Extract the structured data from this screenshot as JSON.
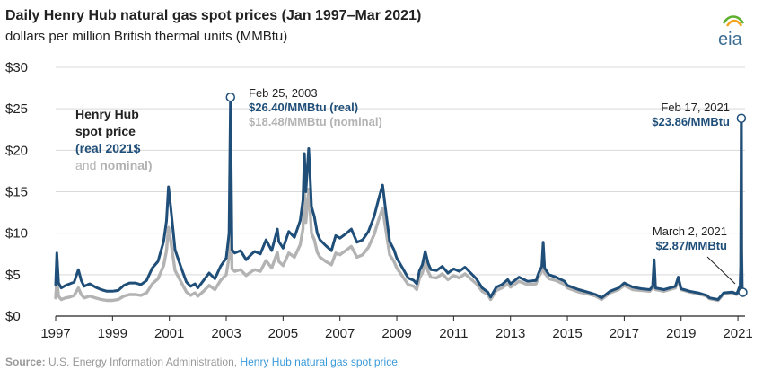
{
  "chart_data": {
    "type": "line",
    "title": "Daily Henry Hub natural gas spot prices (Jan 1997–Mar 2021)",
    "subtitle": "dollars per million British thermal units (MMBtu)",
    "xlim": [
      1997,
      2021.25
    ],
    "ylim": [
      0,
      30
    ],
    "grid": true,
    "y_ticks": [
      0,
      5,
      10,
      15,
      20,
      25,
      30
    ],
    "y_tick_labels": [
      "$0",
      "$5",
      "$10",
      "$15",
      "$20",
      "$25",
      "$30"
    ],
    "x_ticks": [
      1997,
      1999,
      2001,
      2003,
      2005,
      2007,
      2009,
      2011,
      2013,
      2015,
      2017,
      2019,
      2021
    ],
    "x_tick_labels": [
      "1997",
      "1999",
      "2001",
      "2003",
      "2005",
      "2007",
      "2009",
      "2011",
      "2013",
      "2015",
      "2017",
      "2019",
      "2021"
    ],
    "legend": {
      "title_lines": [
        "Henry Hub",
        "spot price"
      ],
      "real_label": "(real 2021$",
      "nominal_prefix": "and ",
      "nominal_label": "nominal)"
    },
    "series": [
      {
        "name": "real 2021$",
        "color": "#1f4e79",
        "x": [
          1997.0,
          1997.04,
          1997.1,
          1997.2,
          1997.35,
          1997.5,
          1997.65,
          1997.8,
          1997.9,
          1998.0,
          1998.2,
          1998.4,
          1998.6,
          1998.8,
          1999.0,
          1999.2,
          1999.4,
          1999.6,
          1999.8,
          2000.0,
          2000.2,
          2000.4,
          2000.6,
          2000.8,
          2000.9,
          2000.97,
          2001.05,
          2001.2,
          2001.4,
          2001.6,
          2001.75,
          2001.9,
          2002.0,
          2002.2,
          2002.4,
          2002.6,
          2002.8,
          2003.0,
          2003.1,
          2003.15,
          2003.2,
          2003.3,
          2003.5,
          2003.7,
          2003.9,
          2004.0,
          2004.2,
          2004.4,
          2004.6,
          2004.8,
          2004.85,
          2005.0,
          2005.2,
          2005.4,
          2005.6,
          2005.7,
          2005.75,
          2005.8,
          2005.9,
          2005.95,
          2006.0,
          2006.1,
          2006.2,
          2006.3,
          2006.5,
          2006.7,
          2006.85,
          2007.0,
          2007.2,
          2007.4,
          2007.6,
          2007.8,
          2008.0,
          2008.2,
          2008.35,
          2008.5,
          2008.6,
          2008.75,
          2008.9,
          2009.0,
          2009.2,
          2009.4,
          2009.6,
          2009.7,
          2009.8,
          2009.9,
          2010.0,
          2010.1,
          2010.2,
          2010.4,
          2010.6,
          2010.8,
          2011.0,
          2011.2,
          2011.4,
          2011.6,
          2011.8,
          2012.0,
          2012.2,
          2012.3,
          2012.5,
          2012.7,
          2012.9,
          2013.0,
          2013.3,
          2013.6,
          2013.9,
          2014.0,
          2014.1,
          2014.15,
          2014.2,
          2014.35,
          2014.6,
          2014.9,
          2015.0,
          2015.4,
          2015.8,
          2016.0,
          2016.2,
          2016.5,
          2016.8,
          2017.0,
          2017.3,
          2017.6,
          2017.9,
          2018.0,
          2018.05,
          2018.1,
          2018.4,
          2018.8,
          2018.9,
          2019.0,
          2019.3,
          2019.6,
          2019.9,
          2020.0,
          2020.3,
          2020.5,
          2020.8,
          2020.95,
          2021.0,
          2021.05,
          2021.08,
          2021.1,
          2021.12,
          2021.13,
          2021.15,
          2021.17
        ],
        "values": [
          3.8,
          7.6,
          4.0,
          3.4,
          3.7,
          3.9,
          4.1,
          5.6,
          4.3,
          3.6,
          3.9,
          3.5,
          3.2,
          3.0,
          3.0,
          3.1,
          3.7,
          4.0,
          4.0,
          3.8,
          4.3,
          5.8,
          6.6,
          9.0,
          11.5,
          15.6,
          13.0,
          8.0,
          6.0,
          4.1,
          3.6,
          3.9,
          3.4,
          4.3,
          5.2,
          4.5,
          6.0,
          7.0,
          10.0,
          26.4,
          8.0,
          7.6,
          7.9,
          6.8,
          7.5,
          7.8,
          7.5,
          9.2,
          7.9,
          10.5,
          9.0,
          8.2,
          10.2,
          9.5,
          11.5,
          14.0,
          19.6,
          15.0,
          20.2,
          17.0,
          13.2,
          12.0,
          10.0,
          9.2,
          8.5,
          7.9,
          9.7,
          9.4,
          9.9,
          10.5,
          8.9,
          9.2,
          10.2,
          12.0,
          14.0,
          15.8,
          13.0,
          9.0,
          8.0,
          7.0,
          5.8,
          4.6,
          4.3,
          3.9,
          5.5,
          6.2,
          7.8,
          6.4,
          5.6,
          5.5,
          6.0,
          5.2,
          5.7,
          5.4,
          5.9,
          5.2,
          4.5,
          3.4,
          2.9,
          2.3,
          3.5,
          3.8,
          4.4,
          3.9,
          4.7,
          4.2,
          4.3,
          5.3,
          6.0,
          8.9,
          5.8,
          5.0,
          4.7,
          4.2,
          3.7,
          3.2,
          2.8,
          2.6,
          2.2,
          3.0,
          3.4,
          4.0,
          3.5,
          3.3,
          3.2,
          3.6,
          6.8,
          3.4,
          3.2,
          3.6,
          4.7,
          3.3,
          3.0,
          2.8,
          2.5,
          2.2,
          2.0,
          2.8,
          2.9,
          2.7,
          3.0,
          3.5,
          3.6,
          6.0,
          23.86,
          8.0,
          3.5,
          2.87
        ]
      },
      {
        "name": "nominal",
        "color": "#b3b3b3",
        "x": [
          1997.0,
          1997.04,
          1997.1,
          1997.2,
          1997.35,
          1997.5,
          1997.65,
          1997.8,
          1997.9,
          1998.0,
          1998.2,
          1998.4,
          1998.6,
          1998.8,
          1999.0,
          1999.2,
          1999.4,
          1999.6,
          1999.8,
          2000.0,
          2000.2,
          2000.4,
          2000.6,
          2000.8,
          2000.9,
          2000.97,
          2001.05,
          2001.2,
          2001.4,
          2001.6,
          2001.75,
          2001.9,
          2002.0,
          2002.2,
          2002.4,
          2002.6,
          2002.8,
          2003.0,
          2003.1,
          2003.15,
          2003.2,
          2003.3,
          2003.5,
          2003.7,
          2003.9,
          2004.0,
          2004.2,
          2004.4,
          2004.6,
          2004.8,
          2004.85,
          2005.0,
          2005.2,
          2005.4,
          2005.6,
          2005.7,
          2005.75,
          2005.8,
          2005.9,
          2005.95,
          2006.0,
          2006.1,
          2006.2,
          2006.3,
          2006.5,
          2006.7,
          2006.85,
          2007.0,
          2007.2,
          2007.4,
          2007.6,
          2007.8,
          2008.0,
          2008.2,
          2008.35,
          2008.5,
          2008.6,
          2008.75,
          2008.9,
          2009.0,
          2009.2,
          2009.4,
          2009.6,
          2009.7,
          2009.8,
          2009.9,
          2010.0,
          2010.1,
          2010.2,
          2010.4,
          2010.6,
          2010.8,
          2011.0,
          2011.2,
          2011.4,
          2011.6,
          2011.8,
          2012.0,
          2012.2,
          2012.3,
          2012.5,
          2012.7,
          2012.9,
          2013.0,
          2013.3,
          2013.6,
          2013.9,
          2014.0,
          2014.1,
          2014.15,
          2014.2,
          2014.35,
          2014.6,
          2014.9,
          2015.0,
          2015.4,
          2015.8,
          2016.0,
          2016.2,
          2016.5,
          2016.8,
          2017.0,
          2017.3,
          2017.6,
          2017.9,
          2018.0,
          2018.05,
          2018.1,
          2018.4,
          2018.8,
          2018.9,
          2019.0,
          2019.3,
          2019.6,
          2019.9,
          2020.0,
          2020.3,
          2020.5,
          2020.8,
          2020.95,
          2021.0,
          2021.05,
          2021.08,
          2021.1,
          2021.12,
          2021.13,
          2021.15,
          2021.17
        ],
        "values": [
          2.2,
          4.4,
          2.4,
          2.0,
          2.2,
          2.3,
          2.5,
          3.4,
          2.6,
          2.2,
          2.4,
          2.2,
          2.0,
          1.9,
          1.9,
          2.0,
          2.4,
          2.6,
          2.6,
          2.5,
          2.8,
          3.9,
          4.5,
          6.1,
          7.9,
          10.7,
          9.0,
          5.5,
          4.2,
          2.9,
          2.5,
          2.8,
          2.4,
          3.0,
          3.7,
          3.2,
          4.3,
          5.0,
          7.1,
          18.48,
          5.7,
          5.4,
          5.6,
          4.9,
          5.4,
          5.6,
          5.4,
          6.7,
          5.8,
          7.7,
          6.6,
          6.1,
          7.6,
          7.1,
          8.6,
          10.5,
          14.8,
          11.3,
          15.3,
          12.9,
          10.0,
          9.2,
          7.7,
          7.1,
          6.6,
          6.2,
          7.6,
          7.4,
          7.9,
          8.4,
          7.1,
          7.4,
          8.3,
          9.8,
          11.5,
          13.0,
          10.7,
          7.4,
          6.6,
          5.8,
          4.8,
          3.8,
          3.6,
          3.2,
          4.6,
          5.2,
          6.5,
          5.4,
          4.7,
          4.6,
          5.1,
          4.4,
          4.9,
          4.6,
          5.1,
          4.5,
          3.9,
          3.0,
          2.6,
          2.0,
          3.1,
          3.4,
          3.9,
          3.5,
          4.2,
          3.8,
          3.9,
          4.8,
          5.4,
          8.0,
          5.2,
          4.5,
          4.3,
          3.8,
          3.4,
          2.9,
          2.6,
          2.4,
          2.0,
          2.8,
          3.2,
          3.7,
          3.2,
          3.1,
          3.0,
          3.4,
          6.4,
          3.2,
          3.0,
          3.4,
          4.5,
          3.2,
          2.9,
          2.7,
          2.4,
          2.1,
          1.9,
          2.7,
          2.8,
          2.6,
          2.9,
          3.4,
          3.5,
          5.9,
          23.5,
          7.9,
          3.5,
          2.87
        ]
      }
    ],
    "annotations": [
      {
        "id": "feb-2003",
        "x": 2003.15,
        "y": 26.4,
        "lines": [
          {
            "text": "Feb 25, 2003",
            "style": "plain"
          },
          {
            "text": "$26.40/MMBtu (real)",
            "style": "real"
          },
          {
            "text": "$18.48/MMBtu (nominal)",
            "style": "nominal"
          }
        ]
      },
      {
        "id": "feb-2021",
        "x": 2021.12,
        "y": 23.86,
        "lines": [
          {
            "text": "Feb 17, 2021",
            "style": "plain"
          },
          {
            "text": "$23.86/MMBtu",
            "style": "real"
          }
        ]
      },
      {
        "id": "mar-2021",
        "x": 2021.17,
        "y": 2.87,
        "lines": [
          {
            "text": "March 2, 2021",
            "style": "plain"
          },
          {
            "text": "$2.87/MMBtu",
            "style": "real"
          }
        ]
      }
    ]
  },
  "logo": {
    "text": "eia",
    "colors": [
      "#5eb130",
      "#f6a31c",
      "#3c6e91"
    ]
  },
  "source": {
    "label": "Source:",
    "text": " U.S. Energy Information Administration, ",
    "link": "Henry Hub natural gas spot price",
    "link_color": "#3a9ad9"
  }
}
